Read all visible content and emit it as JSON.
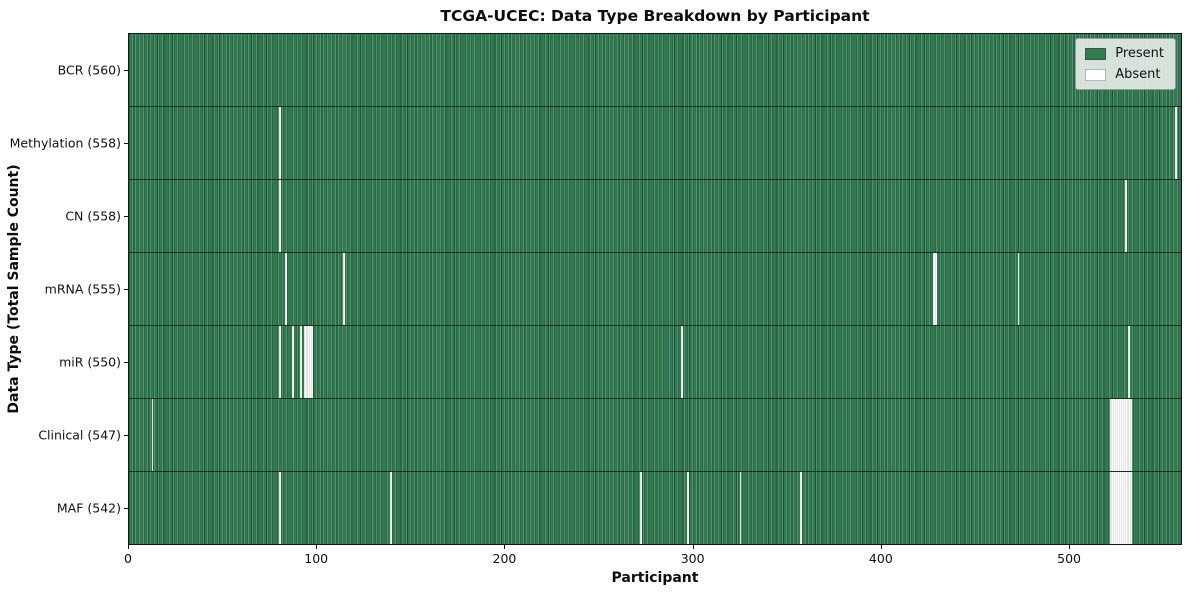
{
  "chart_data": {
    "type": "heatmap",
    "title": "TCGA-UCEC: Data Type Breakdown by Participant",
    "xlabel": "Participant",
    "ylabel": "Data Type (Total Sample Count)",
    "x_ticks": [
      0,
      100,
      200,
      300,
      400,
      500
    ],
    "xlim": [
      0,
      560
    ],
    "n_participants": 560,
    "grid": false,
    "legend_position": "upper right",
    "legend_entries": [
      {
        "label": "Present",
        "swatch": "present"
      },
      {
        "label": "Absent",
        "swatch": "absent"
      }
    ],
    "colors": {
      "present": "#2f7e51",
      "present_dark_line": "#1d5434",
      "present_light": "#549170",
      "absent": "#ffffff",
      "row_separator": "#0a1e10",
      "legend_background": "#e9eee9"
    },
    "rows": [
      {
        "name": "BCR",
        "label": "BCR (560)",
        "total_samples": 560,
        "absent_participants": []
      },
      {
        "name": "Methylation",
        "label": "Methylation (558)",
        "total_samples": 558,
        "absent_participants": [
          80,
          557
        ]
      },
      {
        "name": "CN",
        "label": "CN (558)",
        "total_samples": 558,
        "absent_participants": [
          80,
          530
        ]
      },
      {
        "name": "mRNA",
        "label": "mRNA (555)",
        "total_samples": 555,
        "absent_participants": [
          83,
          114,
          428,
          429,
          473
        ]
      },
      {
        "name": "miR",
        "label": "miR (550)",
        "total_samples": 550,
        "absent_participants": [
          80,
          87,
          91,
          93,
          94,
          95,
          96,
          97,
          294,
          532
        ]
      },
      {
        "name": "Clinical",
        "label": "Clinical (547)",
        "total_samples": 547,
        "absent_participants": [
          12,
          522,
          523,
          524,
          525,
          526,
          527,
          528,
          529,
          530,
          531,
          532,
          533
        ]
      },
      {
        "name": "MAF",
        "label": "MAF (542)",
        "total_samples": 542,
        "absent_participants": [
          80,
          139,
          272,
          297,
          325,
          357,
          522,
          523,
          524,
          525,
          526,
          527,
          528,
          529,
          530,
          531,
          532,
          533
        ]
      }
    ]
  }
}
